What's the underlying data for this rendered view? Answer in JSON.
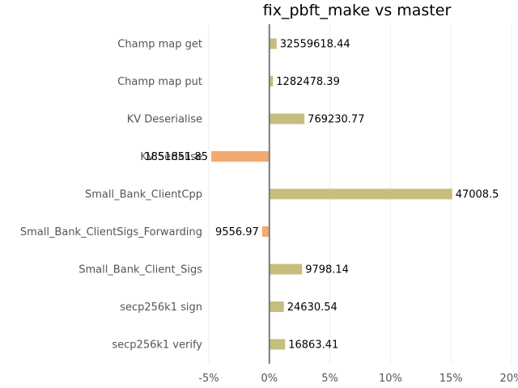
{
  "chart_data": {
    "type": "bar",
    "orientation": "horizontal",
    "title": "fix_pbft_make vs master",
    "xlabel": "",
    "ylabel": "",
    "xlim": [
      -5,
      20
    ],
    "x_ticks": [
      -5,
      0,
      5,
      10,
      15,
      20
    ],
    "x_tick_labels": [
      "-5%",
      "0%",
      "5%",
      "10%",
      "15%",
      "20%"
    ],
    "grid": "vertical",
    "colors": {
      "positive": "#c5be7e",
      "negative": "#f4aa6e",
      "zero_line": "#7a7a7a",
      "grid": "#eeeeee"
    },
    "categories": [
      "Champ map get",
      "Champ map put",
      "KV Deserialise",
      "KV Serialise",
      "Small_Bank_ClientCpp",
      "Small_Bank_ClientSigs_Forwarding",
      "Small_Bank_Client_Sigs",
      "secp256k1 sign",
      "secp256k1 verify"
    ],
    "values": [
      0.6,
      0.3,
      2.9,
      -4.8,
      15.1,
      -0.6,
      2.7,
      1.2,
      1.3
    ],
    "data_labels": [
      "32559618.44",
      "1282478.39",
      "769230.77",
      "1851851.85",
      "47008.5",
      "9556.97",
      "9798.14",
      "24630.54",
      "16863.41"
    ]
  }
}
